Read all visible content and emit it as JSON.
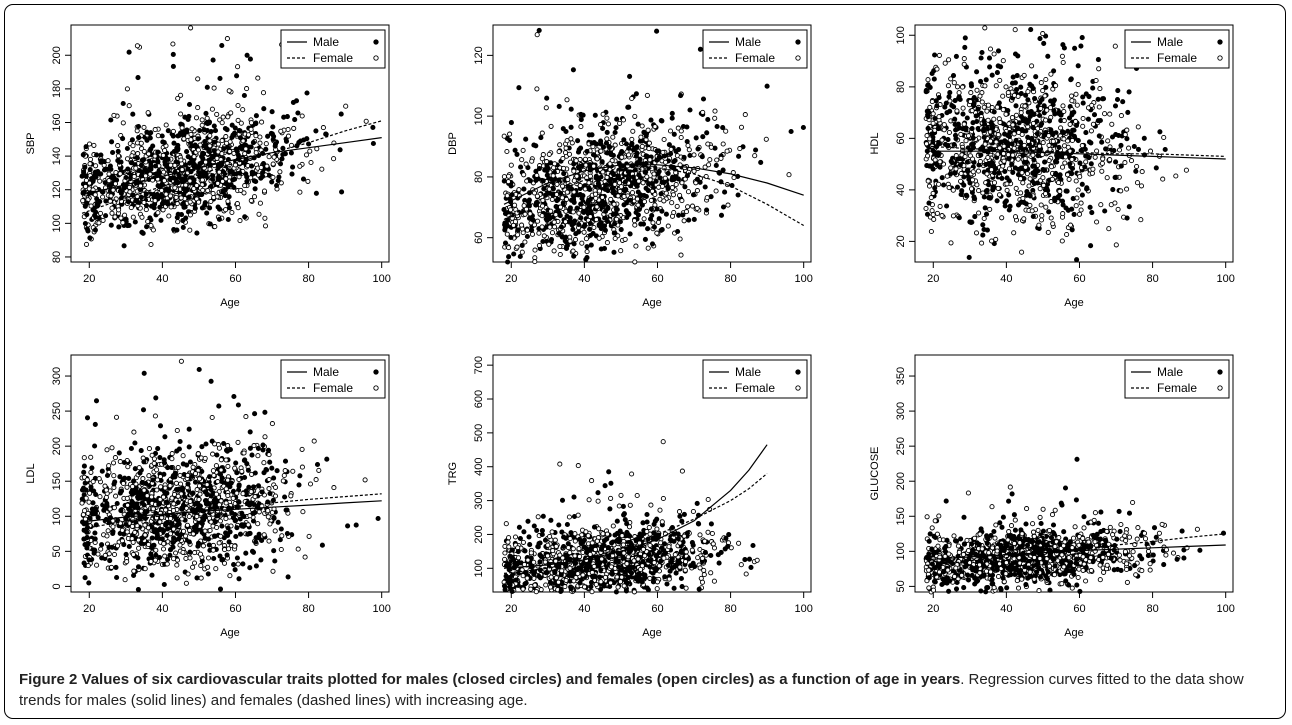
{
  "caption": {
    "label": "Figure 2",
    "title": "Values of six cardiovascular traits plotted for males (closed circles) and females (open circles) as a function of age in years",
    "period": ".",
    "text": "Regression curves fitted to the data show trends for males (solid lines) and females (dashed lines) with increasing age."
  },
  "chart_data": [
    {
      "type": "scatter",
      "xlabel": "Age",
      "ylabel": "SBP",
      "xlim": [
        15,
        102
      ],
      "ylim": [
        77,
        218
      ],
      "xticks": [
        20,
        40,
        60,
        80,
        100
      ],
      "yticks": [
        80,
        100,
        120,
        140,
        160,
        180,
        200
      ],
      "cloud": {
        "x_center": 45,
        "x_spread": 16,
        "y_base": 118,
        "y_slope": 0.45,
        "y_noise": 15
      },
      "legend": {
        "placement": "top-right",
        "entries": [
          "Male",
          "Female"
        ]
      },
      "series": [
        {
          "name": "Male",
          "marker": "closed",
          "line": "solid",
          "fit": {
            "x": [
              18,
              30,
              40,
              50,
              60,
              70,
              80,
              90,
              100
            ],
            "y": [
              117,
              123,
              128,
              133,
              138,
              142,
              145,
              148,
              151
            ]
          }
        },
        {
          "name": "Female",
          "marker": "open",
          "line": "dashed",
          "fit": {
            "x": [
              18,
              30,
              40,
              50,
              60,
              70,
              80,
              90,
              100
            ],
            "y": [
              106,
              115,
              122,
              129,
              136,
              142,
              148,
              155,
              161
            ]
          }
        }
      ]
    },
    {
      "type": "scatter",
      "xlabel": "Age",
      "ylabel": "DBP",
      "xlim": [
        15,
        102
      ],
      "ylim": [
        52,
        130
      ],
      "xticks": [
        20,
        40,
        60,
        80,
        100
      ],
      "yticks": [
        60,
        80,
        100,
        120
      ],
      "cloud": {
        "x_center": 45,
        "x_spread": 16,
        "y_base": 70,
        "y_slope": 0.25,
        "y_noise": 10
      },
      "legend": {
        "placement": "top-right",
        "entries": [
          "Male",
          "Female"
        ]
      },
      "series": [
        {
          "name": "Male",
          "marker": "closed",
          "line": "solid",
          "fit": {
            "x": [
              18,
              30,
              40,
              50,
              60,
              70,
              80,
              90,
              100
            ],
            "y": [
              71,
              78,
              82,
              84,
              84,
              83,
              81,
              78,
              74
            ]
          }
        },
        {
          "name": "Female",
          "marker": "open",
          "line": "dashed",
          "fit": {
            "x": [
              18,
              30,
              40,
              50,
              60,
              70,
              80,
              90,
              100
            ],
            "y": [
              66,
              74,
              79,
              82,
              83,
              81,
              77,
              71,
              64
            ]
          }
        }
      ]
    },
    {
      "type": "scatter",
      "xlabel": "Age",
      "ylabel": "HDL",
      "xlim": [
        15,
        102
      ],
      "ylim": [
        12,
        104
      ],
      "xticks": [
        20,
        40,
        60,
        80,
        100
      ],
      "yticks": [
        20,
        40,
        60,
        80,
        100
      ],
      "cloud": {
        "x_center": 42,
        "x_spread": 16,
        "y_base": 57,
        "y_slope": -0.05,
        "y_noise": 15
      },
      "legend": {
        "placement": "top-right",
        "entries": [
          "Male",
          "Female"
        ]
      },
      "series": [
        {
          "name": "Male",
          "marker": "closed",
          "line": "solid",
          "fit": {
            "x": [
              18,
              30,
              40,
              50,
              60,
              70,
              80,
              90,
              100
            ],
            "y": [
              55,
              55,
              55,
              54.5,
              54,
              53.5,
              53,
              52.5,
              52
            ]
          }
        },
        {
          "name": "Female",
          "marker": "open",
          "line": "dashed",
          "fit": {
            "x": [
              18,
              30,
              40,
              50,
              60,
              70,
              80,
              90,
              100
            ],
            "y": [
              57,
              56,
              55.5,
              55,
              54.5,
              54,
              54,
              53.5,
              53
            ]
          }
        }
      ]
    },
    {
      "type": "scatter",
      "xlabel": "Age",
      "ylabel": "LDL",
      "xlim": [
        15,
        102
      ],
      "ylim": [
        -8,
        330
      ],
      "xticks": [
        20,
        40,
        60,
        80,
        100
      ],
      "yticks": [
        0,
        50,
        100,
        150,
        200,
        250,
        300
      ],
      "cloud": {
        "x_center": 45,
        "x_spread": 16,
        "y_base": 95,
        "y_slope": 0.5,
        "y_noise": 45
      },
      "legend": {
        "placement": "top-right",
        "entries": [
          "Male",
          "Female"
        ]
      },
      "series": [
        {
          "name": "Male",
          "marker": "closed",
          "line": "solid",
          "fit": {
            "x": [
              18,
              30,
              40,
              50,
              60,
              70,
              80,
              90,
              100
            ],
            "y": [
              92,
              99,
              103,
              107,
              110,
              113,
              116,
              119,
              122
            ]
          }
        },
        {
          "name": "Female",
          "marker": "open",
          "line": "dashed",
          "fit": {
            "x": [
              18,
              30,
              40,
              50,
              60,
              70,
              80,
              90,
              100
            ],
            "y": [
              82,
              93,
              101,
              108,
              114,
              119,
              124,
              128,
              132
            ]
          }
        }
      ]
    },
    {
      "type": "scatter",
      "xlabel": "Age",
      "ylabel": "TRG",
      "xlim": [
        15,
        102
      ],
      "ylim": [
        30,
        730
      ],
      "xticks": [
        20,
        40,
        60,
        80,
        100
      ],
      "yticks": [
        100,
        200,
        300,
        400,
        500,
        600,
        700
      ],
      "cloud": {
        "x_center": 45,
        "x_spread": 16,
        "y_base": 85,
        "y_slope": 1.2,
        "y_noise": 55
      },
      "legend": {
        "placement": "top-right",
        "entries": [
          "Male",
          "Female"
        ]
      },
      "series": [
        {
          "name": "Male",
          "marker": "closed",
          "line": "solid",
          "fit": {
            "x": [
              18,
              30,
              40,
              50,
              60,
              70,
              80,
              85,
              90
            ],
            "y": [
              100,
              110,
              125,
              150,
              185,
              240,
              330,
              390,
              465
            ]
          }
        },
        {
          "name": "Female",
          "marker": "open",
          "line": "dashed",
          "fit": {
            "x": [
              18,
              30,
              40,
              50,
              60,
              70,
              80,
              85,
              90
            ],
            "y": [
              85,
              100,
              125,
              160,
              200,
              245,
              300,
              335,
              380
            ]
          }
        }
      ]
    },
    {
      "type": "scatter",
      "xlabel": "Age",
      "ylabel": "GLUCOSE",
      "xlim": [
        15,
        102
      ],
      "ylim": [
        42,
        380
      ],
      "xticks": [
        20,
        40,
        60,
        80,
        100
      ],
      "yticks": [
        50,
        100,
        150,
        200,
        250,
        300,
        350
      ],
      "cloud": {
        "x_center": 45,
        "x_spread": 16,
        "y_base": 82,
        "y_slope": 0.35,
        "y_noise": 18
      },
      "legend": {
        "placement": "top-right",
        "entries": [
          "Male",
          "Female"
        ]
      },
      "series": [
        {
          "name": "Male",
          "marker": "closed",
          "line": "solid",
          "fit": {
            "x": [
              18,
              30,
              40,
              50,
              60,
              70,
              80,
              90,
              100
            ],
            "y": [
              88,
              92,
              95,
              98,
              101,
              103,
              105,
              107,
              109
            ]
          }
        },
        {
          "name": "Female",
          "marker": "open",
          "line": "dashed",
          "fit": {
            "x": [
              18,
              30,
              40,
              50,
              60,
              70,
              80,
              90,
              100
            ],
            "y": [
              80,
              86,
              91,
              97,
              103,
              109,
              114,
              120,
              125
            ]
          }
        }
      ]
    }
  ]
}
